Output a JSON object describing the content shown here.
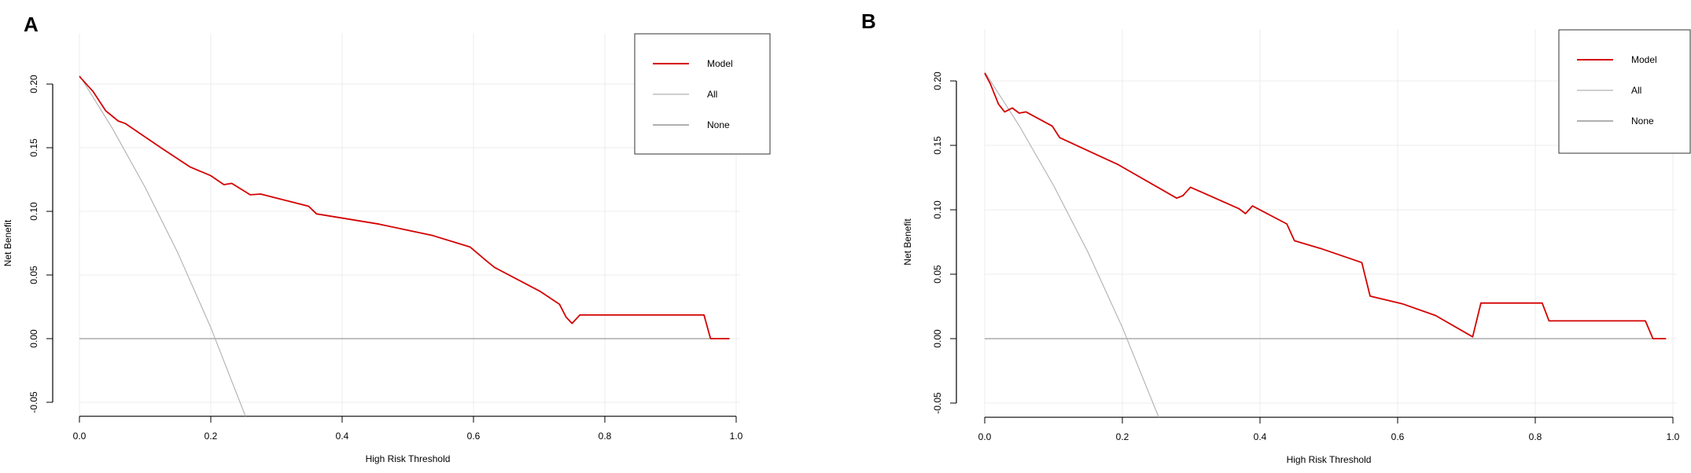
{
  "chart_data": [
    {
      "panel": "A",
      "type": "line",
      "xlabel": "High Risk Threshold",
      "ylabel": "Net Benefit",
      "xlim": [
        0,
        1
      ],
      "ylim": [
        -0.061,
        0.24
      ],
      "xticks": [
        "0.0",
        "0.2",
        "0.4",
        "0.6",
        "0.8",
        "1.0"
      ],
      "yticks": [
        "-0.05",
        "0.00",
        "0.05",
        "0.10",
        "0.15",
        "0.20"
      ],
      "grid": true,
      "legend": {
        "placement": "top-right",
        "entries": [
          "Model",
          "All",
          "None"
        ]
      },
      "series": [
        {
          "name": "Model",
          "color": "#d40000",
          "points": [
            [
              0,
              0.206
            ],
            [
              0.021,
              0.194
            ],
            [
              0.04,
              0.179
            ],
            [
              0.059,
              0.171
            ],
            [
              0.07,
              0.169
            ],
            [
              0.127,
              0.149
            ],
            [
              0.168,
              0.135
            ],
            [
              0.2,
              0.128
            ],
            [
              0.22,
              0.121
            ],
            [
              0.232,
              0.122
            ],
            [
              0.26,
              0.113
            ],
            [
              0.276,
              0.1136
            ],
            [
              0.349,
              0.104
            ],
            [
              0.361,
              0.098
            ],
            [
              0.456,
              0.09
            ],
            [
              0.538,
              0.081
            ],
            [
              0.595,
              0.072
            ],
            [
              0.62,
              0.061
            ],
            [
              0.632,
              0.056
            ],
            [
              0.702,
              0.037
            ],
            [
              0.731,
              0.027
            ],
            [
              0.741,
              0.017
            ],
            [
              0.75,
              0.012
            ],
            [
              0.762,
              0.0186
            ],
            [
              0.951,
              0.0186
            ],
            [
              0.961,
              0.0
            ],
            [
              0.99,
              0.0
            ]
          ]
        },
        {
          "name": "All",
          "color": "#b0b0b0",
          "points": [
            [
              0,
              0.207
            ],
            [
              0.05,
              0.1653
            ],
            [
              0.1,
              0.1189
            ],
            [
              0.15,
              0.0671
            ],
            [
              0.2,
              0.0087
            ],
            [
              0.25,
              -0.0573
            ],
            [
              0.253,
              -0.061
            ]
          ]
        },
        {
          "name": "None",
          "color": "#808080",
          "points": [
            [
              0,
              0
            ],
            [
              0.99,
              0
            ]
          ]
        }
      ]
    },
    {
      "panel": "B",
      "type": "line",
      "xlabel": "High Risk Threshold",
      "ylabel": "Net Benefit",
      "xlim": [
        0,
        1
      ],
      "ylim": [
        -0.061,
        0.24
      ],
      "xticks": [
        "0.0",
        "0.2",
        "0.4",
        "0.6",
        "0.8",
        "1.0"
      ],
      "yticks": [
        "-0.05",
        "0.00",
        "0.05",
        "0.10",
        "0.15",
        "0.20"
      ],
      "grid": true,
      "legend": {
        "placement": "top-right",
        "entries": [
          "Model",
          "All",
          "None"
        ]
      },
      "series": [
        {
          "name": "Model",
          "color": "#d40000",
          "points": [
            [
              0,
              0.206
            ],
            [
              0.008,
              0.198
            ],
            [
              0.02,
              0.182
            ],
            [
              0.029,
              0.176
            ],
            [
              0.04,
              0.179
            ],
            [
              0.05,
              0.175
            ],
            [
              0.06,
              0.176
            ],
            [
              0.098,
              0.165
            ],
            [
              0.109,
              0.156
            ],
            [
              0.194,
              0.135
            ],
            [
              0.279,
              0.109
            ],
            [
              0.288,
              0.111
            ],
            [
              0.299,
              0.1175
            ],
            [
              0.369,
              0.101
            ],
            [
              0.379,
              0.097
            ],
            [
              0.389,
              0.103
            ],
            [
              0.439,
              0.089
            ],
            [
              0.45,
              0.076
            ],
            [
              0.488,
              0.07
            ],
            [
              0.548,
              0.059
            ],
            [
              0.56,
              0.033
            ],
            [
              0.607,
              0.027
            ],
            [
              0.655,
              0.018
            ],
            [
              0.709,
              0.0014
            ],
            [
              0.721,
              0.0276
            ],
            [
              0.81,
              0.0276
            ],
            [
              0.82,
              0.0138
            ],
            [
              0.96,
              0.0138
            ],
            [
              0.971,
              0.0
            ],
            [
              0.99,
              0.0
            ]
          ]
        },
        {
          "name": "All",
          "color": "#b0b0b0",
          "points": [
            [
              0,
              0.207
            ],
            [
              0.05,
              0.1653
            ],
            [
              0.1,
              0.1189
            ],
            [
              0.15,
              0.0671
            ],
            [
              0.2,
              0.0087
            ],
            [
              0.25,
              -0.0573
            ],
            [
              0.253,
              -0.061
            ]
          ]
        },
        {
          "name": "None",
          "color": "#808080",
          "points": [
            [
              0,
              0
            ],
            [
              0.99,
              0
            ]
          ]
        }
      ]
    }
  ]
}
